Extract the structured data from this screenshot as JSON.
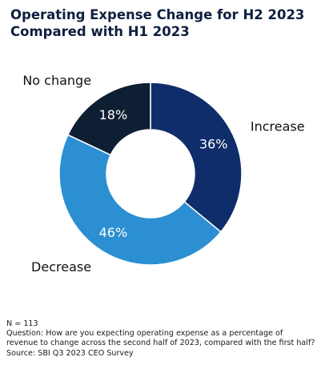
{
  "title_lines": [
    "Operating Expense Change for H2 2023",
    "Compared with H1 2023"
  ],
  "chart_data": {
    "type": "pie",
    "donut": true,
    "title": "Operating Expense Change for H2 2023 Compared with H1 2023",
    "categories": [
      "Increase",
      "Decrease",
      "No change"
    ],
    "values": [
      36,
      46,
      18
    ],
    "value_labels": [
      "36%",
      "46%",
      "18%"
    ],
    "colors": [
      "#0f2d6b",
      "#2b8fd1",
      "#0e1e33"
    ],
    "label_colors": [
      "#ffffff",
      "#ffffff",
      "#ffffff"
    ],
    "start_at": "top",
    "direction": "clockwise",
    "legend": "none"
  },
  "footnotes": {
    "n": "N = 113",
    "question_line1": "Question: How are you expecting operating expense as a percentage of",
    "question_line2": "revenue to change across the second half of 2023, compared with the first half?",
    "source": "Source: SBI Q3 2023 CEO Survey"
  }
}
